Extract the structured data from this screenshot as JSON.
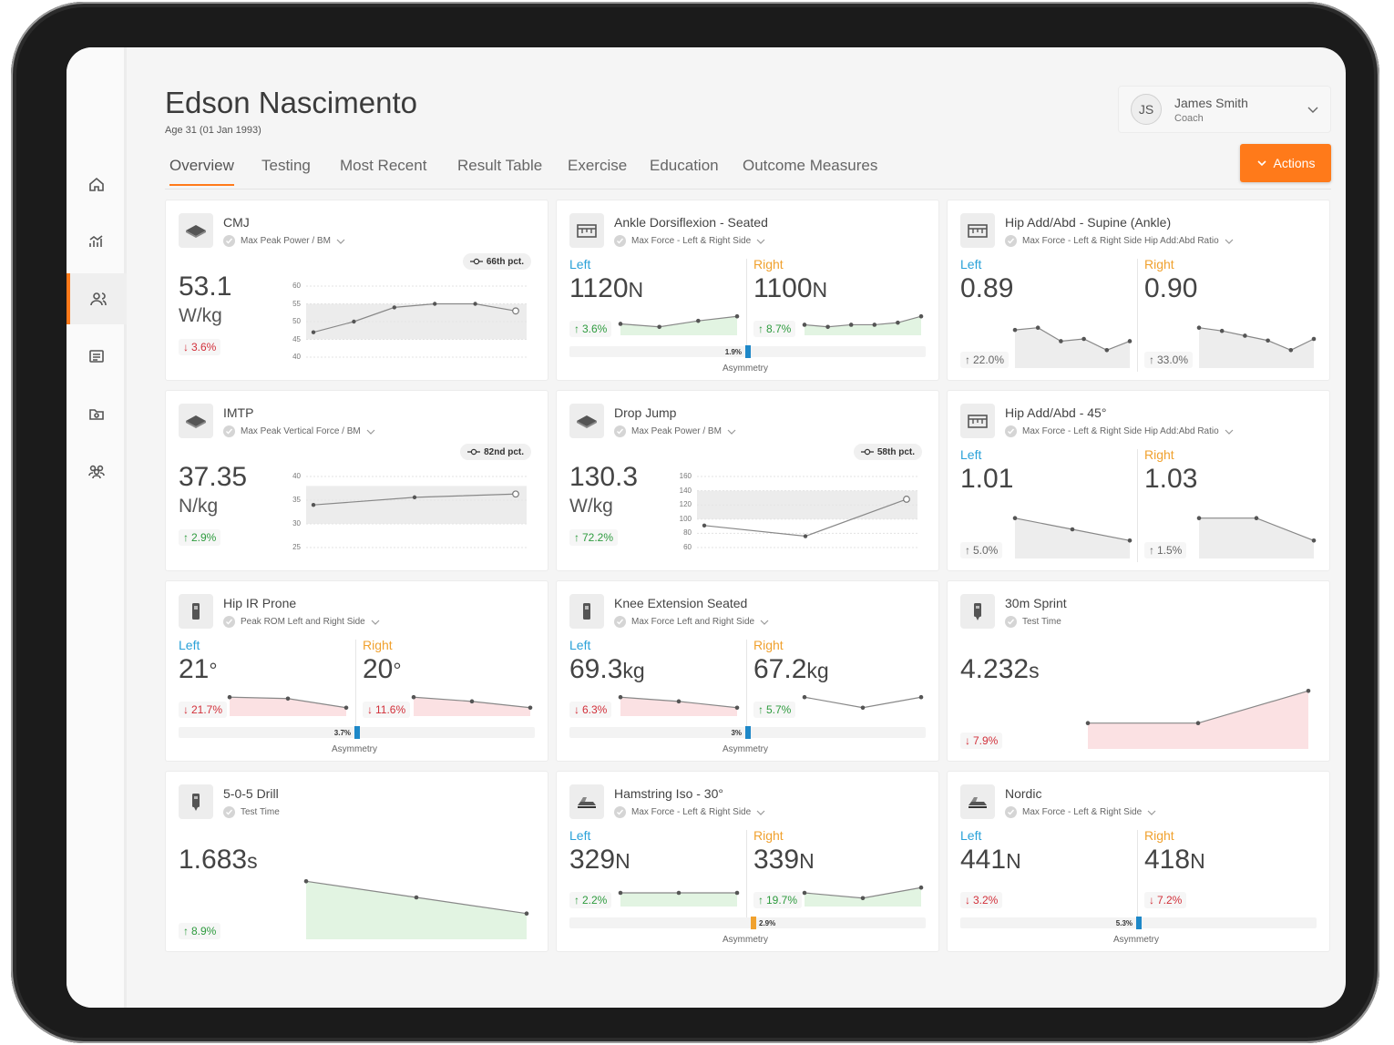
{
  "athlete": {
    "name": "Edson Nascimento",
    "age": "Age  31 (01 Jan 1993)"
  },
  "user": {
    "initials": "JS",
    "name": "James Smith",
    "role": "Coach"
  },
  "actions_label": "Actions",
  "tabs": [
    "Overview",
    "Testing",
    "Most Recent",
    "Result Table",
    "Exercise",
    "Education",
    "Outcome Measures"
  ],
  "sidebar_icons": [
    "home-icon",
    "analytics-icon",
    "people-icon",
    "list-icon",
    "folder-icon",
    "group-icon"
  ],
  "colors": {
    "accent": "#ff7a1a",
    "left": "#2aa1d8",
    "right": "#f0a12e",
    "up": "#2e9b3e",
    "down": "#d2303a",
    "asym": "#1e88c8"
  },
  "labels": {
    "left": "Left",
    "right": "Right",
    "asymmetry": "Asymmetry"
  },
  "cards": [
    {
      "title": "CMJ",
      "subtitle": "Max Peak Power / BM",
      "icon": "force-plate-icon",
      "type": "single",
      "value": "53.1",
      "unit": "W/kg",
      "unit_newline": true,
      "change": "3.6%",
      "dir": "down",
      "percentile": "66th pct.",
      "band": [
        45,
        55
      ],
      "ticks": [
        60,
        55,
        50,
        45,
        40
      ],
      "ymin": 40,
      "ymax": 60,
      "series": [
        47,
        50,
        54,
        55,
        55,
        53
      ]
    },
    {
      "title": "Ankle Dorsiflexion - Seated",
      "subtitle": "Max Force - Left & Right Side",
      "icon": "dynamometer-icon",
      "type": "dual",
      "left": {
        "value": "1120",
        "unit": "N",
        "change": "3.6%",
        "dir": "up",
        "series": [
          1100,
          1098,
          1102,
          1105
        ],
        "fill": "green"
      },
      "right": {
        "value": "1100",
        "unit": "N",
        "change": "8.7%",
        "dir": "up",
        "series": [
          1080,
          1079,
          1080,
          1080,
          1081,
          1084
        ],
        "fill": "green"
      },
      "asymmetry": {
        "value": "1.9%",
        "side": "left",
        "fraction": 0.019
      }
    },
    {
      "title": "Hip Add/Abd - Supine (Ankle)",
      "subtitle": "Max Force - Left & Right Side Hip Add:Abd Ratio",
      "icon": "dynamometer-icon",
      "type": "dual",
      "left": {
        "value": "0.89",
        "unit": "",
        "change": "22.0%",
        "dir": "neutral",
        "series": [
          0.95,
          0.96,
          0.9,
          0.91,
          0.86,
          0.9
        ],
        "fill": "grey"
      },
      "right": {
        "value": "0.90",
        "unit": "",
        "change": "33.0%",
        "dir": "neutral",
        "series": [
          0.98,
          0.96,
          0.93,
          0.9,
          0.84,
          0.91
        ],
        "fill": "grey"
      },
      "asymmetry": null
    },
    {
      "title": "IMTP",
      "subtitle": "Max Peak Vertical Force / BM",
      "icon": "force-plate-icon",
      "type": "single",
      "value": "37.35",
      "unit": "N/kg",
      "unit_newline": true,
      "change": "2.9%",
      "dir": "up",
      "percentile": "82nd pct.",
      "band": [
        30,
        38
      ],
      "ticks": [
        40,
        35,
        30,
        25
      ],
      "ymin": 25,
      "ymax": 40,
      "series": [
        34,
        35.6,
        36.3
      ]
    },
    {
      "title": "Drop Jump",
      "subtitle": "Max Peak Power / BM",
      "icon": "force-plate-icon",
      "type": "single",
      "value": "130.3",
      "unit": "W/kg",
      "unit_newline": true,
      "change": "72.2%",
      "dir": "up",
      "percentile": "58th pct.",
      "band": [
        100,
        140
      ],
      "ticks": [
        160,
        140,
        120,
        100,
        80,
        60
      ],
      "ymin": 60,
      "ymax": 160,
      "series": [
        91,
        76,
        128
      ]
    },
    {
      "title": "Hip Add/Abd - 45°",
      "subtitle": "Max Force - Left & Right Side Hip Add:Abd Ratio",
      "icon": "dynamometer-icon",
      "type": "dual",
      "left": {
        "value": "1.01",
        "unit": "",
        "change": "5.0%",
        "dir": "neutral",
        "series": [
          1.05,
          1.04,
          1.03
        ],
        "fill": "grey"
      },
      "right": {
        "value": "1.03",
        "unit": "",
        "change": "1.5%",
        "dir": "neutral",
        "series": [
          1.05,
          1.05,
          1.04
        ],
        "fill": "grey"
      },
      "asymmetry": null
    },
    {
      "title": "Hip IR Prone",
      "subtitle": "Peak ROM Left and Right Side",
      "icon": "sensor-icon",
      "type": "dual",
      "left": {
        "value": "21",
        "unit": "°",
        "change": "21.7%",
        "dir": "down",
        "series": [
          25,
          24.8,
          23.5
        ],
        "fill": "red"
      },
      "right": {
        "value": "20",
        "unit": "°",
        "change": "11.6%",
        "dir": "down",
        "series": [
          22,
          21.6,
          21
        ],
        "fill": "red"
      },
      "asymmetry": {
        "value": "3.7%",
        "side": "left",
        "fraction": 0.037
      }
    },
    {
      "title": "Knee Extension Seated",
      "subtitle": "Max Force Left and Right Side",
      "icon": "sensor-icon",
      "type": "dual",
      "left": {
        "value": "69.3",
        "unit": "kg",
        "change": "6.3%",
        "dir": "down",
        "series": [
          74,
          73.8,
          73.5
        ],
        "fill": "red"
      },
      "right": {
        "value": "67.2",
        "unit": "kg",
        "change": "5.7%",
        "dir": "up",
        "series": [
          64,
          63.5,
          64
        ]
      },
      "asymmetry": {
        "value": "3%",
        "side": "left",
        "fraction": 0.03
      }
    },
    {
      "title": "30m Sprint",
      "subtitle": "Test Time",
      "icon": "timer-icon",
      "type": "single-wide",
      "value": "4.232",
      "unit": "s",
      "unit_newline": false,
      "change": "7.9%",
      "dir": "down",
      "series": [
        4.1,
        4.1,
        4.12
      ],
      "fill": "red"
    },
    {
      "title": "5-0-5 Drill",
      "subtitle": "Test Time",
      "icon": "timer-icon",
      "type": "single-wide",
      "value": "1.683",
      "unit": "s",
      "unit_newline": false,
      "change": "8.9%",
      "dir": "up",
      "series": [
        1.9,
        1.86,
        1.82
      ],
      "fill": "green"
    },
    {
      "title": "Hamstring Iso - 30°",
      "subtitle": "Max Force - Left & Right Side",
      "icon": "nordic-board-icon",
      "type": "dual",
      "left": {
        "value": "329",
        "unit": "N",
        "change": "2.2%",
        "dir": "up",
        "series": [
          330,
          330,
          330
        ],
        "fill": "green"
      },
      "right": {
        "value": "339",
        "unit": "N",
        "change": "19.7%",
        "dir": "up",
        "series": [
          339,
          338,
          340
        ],
        "fill": "green"
      },
      "asymmetry": {
        "value": "2.9%",
        "side": "right",
        "fraction": 0.029
      }
    },
    {
      "title": "Nordic",
      "subtitle": "Max Force - Left & Right Side",
      "icon": "nordic-board-icon",
      "type": "dual",
      "left": {
        "value": "441",
        "unit": "N",
        "change": "3.2%",
        "dir": "down",
        "series": [],
        "fill": "none"
      },
      "right": {
        "value": "418",
        "unit": "N",
        "change": "7.2%",
        "dir": "down",
        "series": [],
        "fill": "none"
      },
      "asymmetry": {
        "value": "5.3%",
        "side": "left",
        "fraction": 0.053
      }
    }
  ]
}
